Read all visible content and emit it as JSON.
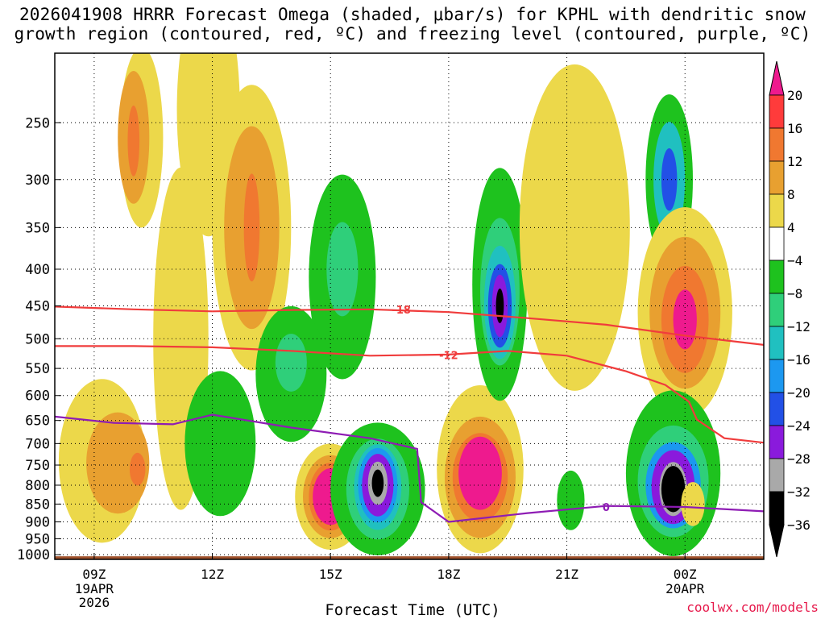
{
  "title_line1": "2026041908 HRRR Forecast Omega (shaded, μbar/s) for KPHL with dendritic snow",
  "title_line2": "growth region (contoured, red, ºC) and freezing level (contoured, purple, ºC)",
  "credit": "coolwx.com/models",
  "chart_data": {
    "type": "heatmap",
    "xlabel": "Forecast Time (UTC)",
    "ylabel": "",
    "x_ticks": [
      {
        "hour": 9,
        "label": "09Z",
        "sub": [
          "19APR",
          "2026"
        ]
      },
      {
        "hour": 12,
        "label": "12Z",
        "sub": []
      },
      {
        "hour": 15,
        "label": "15Z",
        "sub": []
      },
      {
        "hour": 18,
        "label": "18Z",
        "sub": []
      },
      {
        "hour": 21,
        "label": "21Z",
        "sub": []
      },
      {
        "hour": 24,
        "label": "00Z",
        "sub": [
          "20APR"
        ]
      }
    ],
    "xlim_hours": [
      8,
      26
    ],
    "y_ticks": [
      250,
      300,
      350,
      400,
      450,
      500,
      550,
      600,
      650,
      700,
      750,
      800,
      850,
      900,
      950,
      1000
    ],
    "ylim_hpa": [
      200,
      1015
    ],
    "y_scale": "log-pressure",
    "colorbar": {
      "labels": [
        "20",
        "16",
        "12",
        "8",
        "4",
        "−4",
        "−8",
        "−12",
        "−16",
        "−20",
        "−24",
        "−28",
        "−32",
        "−36"
      ],
      "colors": [
        "#ff3b3b",
        "#f07830",
        "#e8a030",
        "#ecd84a",
        "#ffffff",
        "#1ec21e",
        "#2fcf7a",
        "#20c0c0",
        "#1c98f0",
        "#2250e6",
        "#8a1adc",
        "#a9a9a9",
        "#000000"
      ],
      "top_arrow_color": "#ee1a8e",
      "bottom_arrow_color": "#000000"
    },
    "contour_labels": [
      {
        "text": "-18",
        "hour": 16.8,
        "hpa": 455,
        "color": "#f03c3c"
      },
      {
        "text": "-12",
        "hour": 18.0,
        "hpa": 527,
        "color": "#f03c3c"
      },
      {
        "text": "0",
        "hour": 22.0,
        "hpa": 858,
        "color": "#8e1cb4"
      }
    ],
    "isotherm_minus18": [
      [
        8,
        451
      ],
      [
        10,
        455
      ],
      [
        12,
        458
      ],
      [
        14,
        456
      ],
      [
        16,
        455
      ],
      [
        18,
        459
      ],
      [
        20,
        468
      ],
      [
        22,
        478
      ],
      [
        24,
        495
      ],
      [
        26,
        510
      ]
    ],
    "isotherm_minus12": [
      [
        8,
        512
      ],
      [
        10,
        512
      ],
      [
        12,
        514
      ],
      [
        14,
        520
      ],
      [
        16,
        528
      ],
      [
        18,
        526
      ],
      [
        19.5,
        520
      ],
      [
        21,
        528
      ],
      [
        22.5,
        555
      ],
      [
        23.5,
        580
      ],
      [
        24.1,
        612
      ],
      [
        24.3,
        648
      ],
      [
        25,
        688
      ],
      [
        26,
        698
      ]
    ],
    "freezing_level": [
      [
        8,
        642
      ],
      [
        9.5,
        655
      ],
      [
        11,
        658
      ],
      [
        12,
        638
      ],
      [
        14,
        665
      ],
      [
        16,
        688
      ],
      [
        17.2,
        712
      ],
      [
        17.3,
        845
      ],
      [
        18,
        900
      ],
      [
        20,
        875
      ],
      [
        22,
        855
      ],
      [
        24,
        858
      ],
      [
        26,
        870
      ]
    ],
    "features": [
      {
        "hour": 10.2,
        "hpa": 262,
        "rh": 0.55,
        "rp": 95,
        "value": 4
      },
      {
        "hour": 11.9,
        "hpa": 240,
        "rh": 0.8,
        "rp": 210,
        "value": 4
      },
      {
        "hour": 10.0,
        "hpa": 262,
        "rh": 0.4,
        "rp": 55,
        "value": 8
      },
      {
        "hour": 10.0,
        "hpa": 265,
        "rh": 0.15,
        "rp": 30,
        "value": 12
      },
      {
        "hour": 13.0,
        "hpa": 350,
        "rh": 1.0,
        "rp": 150,
        "value": 4
      },
      {
        "hour": 13.0,
        "hpa": 350,
        "rh": 0.7,
        "rp": 110,
        "value": 8
      },
      {
        "hour": 13.0,
        "hpa": 350,
        "rh": 0.2,
        "rp": 60,
        "value": 12
      },
      {
        "hour": 9.2,
        "hpa": 740,
        "rh": 1.1,
        "rp": 190,
        "value": 4
      },
      {
        "hour": 9.6,
        "hpa": 745,
        "rh": 0.8,
        "rp": 120,
        "value": 8
      },
      {
        "hour": 10.1,
        "hpa": 760,
        "rh": 0.2,
        "rp": 40,
        "value": 12
      },
      {
        "hour": 11.2,
        "hpa": 500,
        "rh": 0.7,
        "rp": 250,
        "value": 4
      },
      {
        "hour": 15.3,
        "hpa": 410,
        "rh": 0.85,
        "rp": 130,
        "value": -4
      },
      {
        "hour": 15.3,
        "hpa": 400,
        "rh": 0.4,
        "rp": 60,
        "value": -8
      },
      {
        "hour": 14.0,
        "hpa": 560,
        "rh": 0.9,
        "rp": 120,
        "value": -4
      },
      {
        "hour": 14.0,
        "hpa": 540,
        "rh": 0.4,
        "rp": 50,
        "value": -8
      },
      {
        "hour": 12.2,
        "hpa": 700,
        "rh": 0.9,
        "rp": 160,
        "value": -4
      },
      {
        "hour": 15.0,
        "hpa": 830,
        "rh": 0.9,
        "rp": 140,
        "value": 4
      },
      {
        "hour": 15.0,
        "hpa": 830,
        "rh": 0.7,
        "rp": 110,
        "value": 8
      },
      {
        "hour": 15.0,
        "hpa": 830,
        "rh": 0.55,
        "rp": 90,
        "value": 12
      },
      {
        "hour": 15.0,
        "hpa": 830,
        "rh": 0.45,
        "rp": 75,
        "value": 20
      },
      {
        "hour": 16.2,
        "hpa": 810,
        "rh": 1.2,
        "rp": 170,
        "value": -4
      },
      {
        "hour": 16.2,
        "hpa": 810,
        "rh": 0.8,
        "rp": 130,
        "value": -8
      },
      {
        "hour": 16.2,
        "hpa": 805,
        "rh": 0.6,
        "rp": 110,
        "value": -12
      },
      {
        "hour": 16.2,
        "hpa": 800,
        "rh": 0.5,
        "rp": 95,
        "value": -16
      },
      {
        "hour": 16.2,
        "hpa": 800,
        "rh": 0.4,
        "rp": 80,
        "value": -24
      },
      {
        "hour": 16.2,
        "hpa": 795,
        "rh": 0.25,
        "rp": 55,
        "value": -32
      },
      {
        "hour": 16.2,
        "hpa": 795,
        "rh": 0.15,
        "rp": 35,
        "value": -36
      },
      {
        "hour": 18.8,
        "hpa": 760,
        "rh": 1.1,
        "rp": 200,
        "value": 4
      },
      {
        "hour": 18.8,
        "hpa": 780,
        "rh": 0.9,
        "rp": 150,
        "value": 8
      },
      {
        "hour": 18.8,
        "hpa": 780,
        "rh": 0.7,
        "rp": 110,
        "value": 12
      },
      {
        "hour": 18.8,
        "hpa": 770,
        "rh": 0.55,
        "rp": 90,
        "value": 20
      },
      {
        "hour": 19.3,
        "hpa": 420,
        "rh": 0.7,
        "rp": 150,
        "value": -4
      },
      {
        "hour": 19.3,
        "hpa": 430,
        "rh": 0.5,
        "rp": 100,
        "value": -8
      },
      {
        "hour": 19.3,
        "hpa": 445,
        "rh": 0.4,
        "rp": 80,
        "value": -12
      },
      {
        "hour": 19.3,
        "hpa": 450,
        "rh": 0.3,
        "rp": 60,
        "value": -20
      },
      {
        "hour": 19.3,
        "hpa": 450,
        "rh": 0.2,
        "rp": 45,
        "value": -28
      },
      {
        "hour": 19.3,
        "hpa": 450,
        "rh": 0.1,
        "rp": 25,
        "value": -36
      },
      {
        "hour": 21.2,
        "hpa": 350,
        "rh": 1.4,
        "rp": 220,
        "value": 4
      },
      {
        "hour": 23.6,
        "hpa": 300,
        "rh": 0.6,
        "rp": 80,
        "value": -4
      },
      {
        "hour": 23.6,
        "hpa": 300,
        "rh": 0.4,
        "rp": 55,
        "value": -12
      },
      {
        "hour": 23.6,
        "hpa": 300,
        "rh": 0.2,
        "rp": 30,
        "value": -20
      },
      {
        "hour": 24.0,
        "hpa": 460,
        "rh": 1.2,
        "rp": 150,
        "value": 4
      },
      {
        "hour": 24.0,
        "hpa": 460,
        "rh": 0.9,
        "rp": 110,
        "value": 8
      },
      {
        "hour": 24.0,
        "hpa": 470,
        "rh": 0.6,
        "rp": 80,
        "value": 12
      },
      {
        "hour": 24.0,
        "hpa": 470,
        "rh": 0.3,
        "rp": 45,
        "value": 20
      },
      {
        "hour": 23.7,
        "hpa": 770,
        "rh": 1.2,
        "rp": 200,
        "value": -4
      },
      {
        "hour": 23.7,
        "hpa": 790,
        "rh": 0.9,
        "rp": 140,
        "value": -8
      },
      {
        "hour": 23.7,
        "hpa": 800,
        "rh": 0.7,
        "rp": 110,
        "value": -16
      },
      {
        "hour": 23.7,
        "hpa": 805,
        "rh": 0.55,
        "rp": 95,
        "value": -24
      },
      {
        "hour": 23.7,
        "hpa": 810,
        "rh": 0.35,
        "rp": 70,
        "value": -32
      },
      {
        "hour": 23.7,
        "hpa": 810,
        "rh": 0.3,
        "rp": 60,
        "value": -36
      },
      {
        "hour": 21.1,
        "hpa": 840,
        "rh": 0.35,
        "rp": 80,
        "value": -4
      },
      {
        "hour": 24.2,
        "hpa": 850,
        "rh": 0.3,
        "rp": 60,
        "value": 4
      }
    ],
    "grid": true,
    "terrain_color": "#a0522d"
  }
}
